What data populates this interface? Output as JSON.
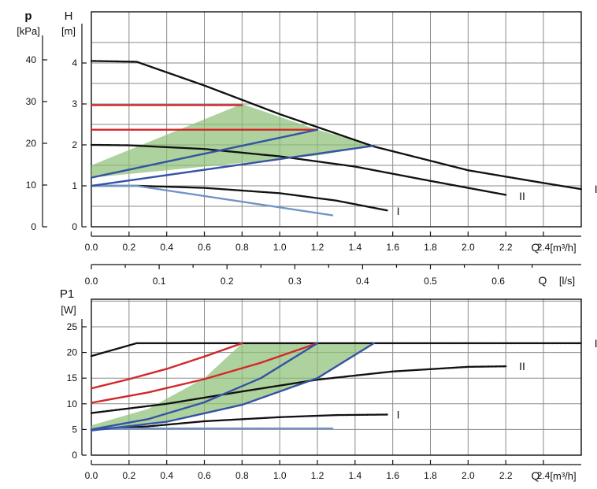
{
  "colors": {
    "black": "#111111",
    "red": "#d3272b",
    "blue": "#3553a4",
    "light_blue": "#6f93c8",
    "green_fill": "#8cbf74",
    "green_fill_opacity": 0.7,
    "grid": "#8a8a8a"
  },
  "chart_data": [
    {
      "type": "line",
      "id": "head",
      "y_outer_label": [
        "p",
        "[kPa]"
      ],
      "y_inner_label": [
        "H",
        "[m]"
      ],
      "x_label": "Q [m³/h]",
      "x_label_parts": [
        "Q",
        "[m³/h]"
      ],
      "xlim": [
        0,
        2.6
      ],
      "ylim": [
        0,
        4.5
      ],
      "grid": true,
      "x_ticks": [
        "0.0",
        "0.2",
        "0.4",
        "0.6",
        "0.8",
        "1.0",
        "1.2",
        "1.4",
        "1.6",
        "1.8",
        "2.0",
        "2.2",
        "2.4"
      ],
      "y_ticks_inner": [
        "0",
        "1",
        "2",
        "3",
        "4"
      ],
      "y_ticks_outer": [
        "0",
        "10",
        "20",
        "30",
        "40"
      ],
      "series": [
        {
          "name": "III",
          "color": "black",
          "style": "dotted",
          "x": [
            0.0,
            0.24,
            0.6,
            1.0,
            1.5,
            2.0,
            2.4,
            2.6
          ],
          "y": [
            4.05,
            4.03,
            3.45,
            2.75,
            1.96,
            1.38,
            1.07,
            0.92
          ]
        },
        {
          "name": "II",
          "color": "black",
          "style": "dotted",
          "x": [
            0.0,
            0.2,
            0.6,
            1.0,
            1.4,
            1.8,
            2.2
          ],
          "y": [
            2.0,
            1.99,
            1.9,
            1.72,
            1.47,
            1.12,
            0.78
          ]
        },
        {
          "name": "I",
          "color": "black",
          "style": "dotted",
          "x": [
            0.0,
            0.25,
            0.6,
            1.0,
            1.3,
            1.57
          ],
          "y": [
            1.0,
            1.0,
            0.95,
            0.82,
            0.64,
            0.4
          ]
        },
        {
          "name": "",
          "color": "light_blue",
          "style": "dotted",
          "x": [
            0.0,
            0.24,
            1.28
          ],
          "y": [
            1.0,
            1.0,
            0.28
          ]
        },
        {
          "name": "",
          "color": "red",
          "style": "dotted",
          "x": [
            0.0,
            0.8
          ],
          "y": [
            2.97,
            2.97
          ]
        },
        {
          "name": "",
          "color": "red",
          "style": "dotted",
          "x": [
            0.0,
            1.2
          ],
          "y": [
            2.37,
            2.37
          ]
        },
        {
          "name": "",
          "color": "blue",
          "style": "solid",
          "x": [
            0.0,
            1.2
          ],
          "y": [
            1.2,
            2.37
          ]
        },
        {
          "name": "",
          "color": "blue",
          "style": "solid",
          "x": [
            0.0,
            1.5
          ],
          "y": [
            1.0,
            1.98
          ]
        }
      ],
      "shaded_region": {
        "x": [
          0.0,
          0.8,
          1.2,
          1.5,
          1.2,
          0.0
        ],
        "y": [
          1.5,
          3.0,
          2.37,
          1.98,
          1.74,
          1.2
        ]
      },
      "curve_labels": [
        {
          "text": "III",
          "x": 2.65,
          "y": 0.92
        },
        {
          "text": "II",
          "x": 2.25,
          "y": 0.75
        },
        {
          "text": "I",
          "x": 1.6,
          "y": 0.38
        }
      ]
    },
    {
      "type": "axis",
      "id": "flow_ls",
      "x_label": "Q [l/s]",
      "x_label_parts": [
        "Q",
        "[l/s]"
      ],
      "xlim": [
        0,
        0.7222
      ],
      "x_ticks": [
        "0.0",
        "0.1",
        "0.2",
        "0.3",
        "0.4",
        "0.5",
        "0.6"
      ]
    },
    {
      "type": "line",
      "id": "power",
      "y_label": [
        "P1",
        "[W]"
      ],
      "x_label": "Q [m³/h]",
      "x_label_parts": [
        "Q",
        "[m³/h]"
      ],
      "xlim": [
        0,
        2.6
      ],
      "ylim": [
        0,
        25
      ],
      "grid": true,
      "x_ticks": [
        "0.0",
        "0.2",
        "0.4",
        "0.6",
        "0.8",
        "1.0",
        "1.2",
        "1.4",
        "1.6",
        "1.8",
        "2.0",
        "2.2",
        "2.4"
      ],
      "y_ticks": [
        "0",
        "5",
        "10",
        "15",
        "20",
        "25"
      ],
      "series": [
        {
          "name": "III",
          "color": "black",
          "style": "dotted",
          "x": [
            0.0,
            0.24,
            2.6
          ],
          "y": [
            19.3,
            21.8,
            21.8
          ]
        },
        {
          "name": "II",
          "color": "black",
          "style": "dotted",
          "x": [
            0.0,
            0.4,
            0.8,
            1.2,
            1.6,
            2.0,
            2.2
          ],
          "y": [
            8.2,
            10.0,
            12.4,
            14.7,
            16.3,
            17.2,
            17.3
          ]
        },
        {
          "name": "I",
          "color": "black",
          "style": "dotted",
          "x": [
            0.0,
            0.3,
            0.6,
            1.0,
            1.3,
            1.57
          ],
          "y": [
            5.0,
            5.6,
            6.6,
            7.4,
            7.8,
            7.9
          ]
        },
        {
          "name": "",
          "color": "light_blue",
          "style": "dotted",
          "x": [
            0.0,
            0.24,
            1.28
          ],
          "y": [
            5.0,
            5.2,
            5.2
          ]
        },
        {
          "name": "",
          "color": "red",
          "style": "solid",
          "x": [
            0.0,
            0.2,
            0.4,
            0.6,
            0.8
          ],
          "y": [
            13.0,
            14.8,
            16.8,
            19.2,
            21.8
          ]
        },
        {
          "name": "",
          "color": "red",
          "style": "solid",
          "x": [
            0.0,
            0.3,
            0.6,
            0.9,
            1.2
          ],
          "y": [
            10.2,
            12.2,
            14.8,
            18.0,
            21.8
          ]
        },
        {
          "name": "",
          "color": "blue",
          "style": "solid",
          "x": [
            0.0,
            0.3,
            0.6,
            0.9,
            1.2
          ],
          "y": [
            5.0,
            7.0,
            10.3,
            15.0,
            21.8
          ]
        },
        {
          "name": "",
          "color": "blue",
          "style": "solid",
          "x": [
            0.0,
            0.4,
            0.8,
            1.2,
            1.5
          ],
          "y": [
            4.8,
            6.5,
            9.8,
            15.0,
            21.8
          ]
        }
      ],
      "shaded_region": {
        "x": [
          0.0,
          0.3,
          0.6,
          0.8,
          1.5,
          1.2,
          0.8,
          0.4,
          0.0
        ],
        "y": [
          5.8,
          9.0,
          15.0,
          21.8,
          21.8,
          15.0,
          9.8,
          6.5,
          4.8
        ]
      },
      "curve_labels": [
        {
          "text": "III",
          "x": 2.65,
          "y": 21.8
        },
        {
          "text": "II",
          "x": 2.25,
          "y": 17.3
        },
        {
          "text": "I",
          "x": 1.6,
          "y": 7.9
        }
      ]
    }
  ]
}
